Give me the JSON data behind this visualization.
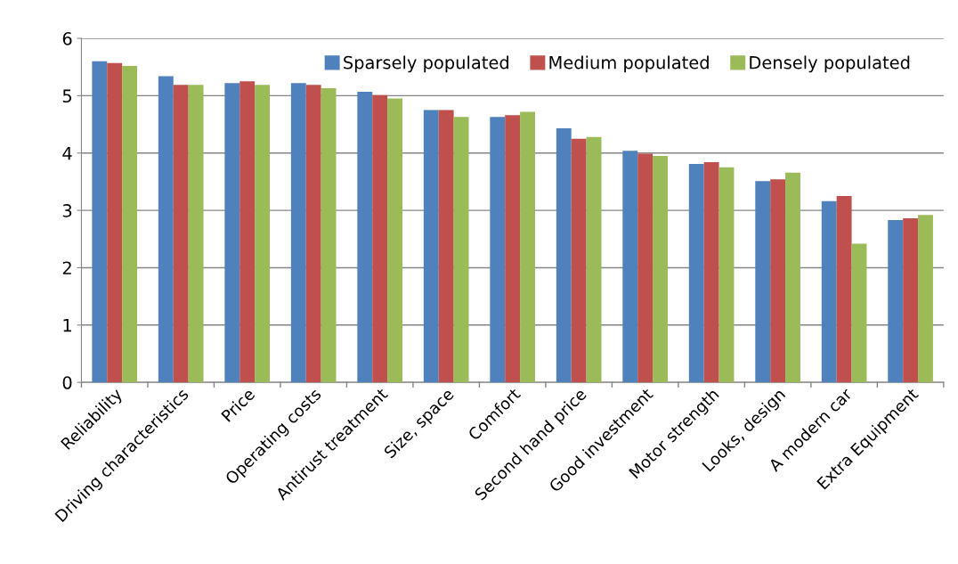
{
  "chart_data": {
    "type": "bar",
    "categories": [
      "Reliability",
      "Driving characteristics",
      "Price",
      "Operating costs",
      "Antirust treatment",
      "Size, space",
      "Comfort",
      "Second hand price",
      "Good investment",
      "Motor strength",
      "Looks, design",
      "A modern car",
      "Extra Equipment"
    ],
    "series": [
      {
        "name": "Sparsely populated",
        "color": "#4f81bd",
        "values": [
          5.6,
          5.34,
          5.22,
          5.22,
          5.07,
          4.75,
          4.63,
          4.43,
          4.04,
          3.81,
          3.51,
          3.16,
          2.83
        ]
      },
      {
        "name": "Medium populated",
        "color": "#c0504d",
        "values": [
          5.57,
          5.19,
          5.25,
          5.19,
          5.01,
          4.75,
          4.66,
          4.25,
          3.99,
          3.84,
          3.54,
          3.25,
          2.86
        ]
      },
      {
        "name": "Densely populated",
        "color": "#9bbb59",
        "values": [
          5.52,
          5.19,
          5.19,
          5.13,
          4.95,
          4.63,
          4.72,
          4.28,
          3.95,
          3.75,
          3.66,
          2.42,
          2.92
        ]
      }
    ],
    "ylim": [
      0,
      6
    ],
    "yticks": [
      0,
      1,
      2,
      3,
      4,
      5,
      6
    ],
    "grid": "y",
    "legend": "top right"
  }
}
